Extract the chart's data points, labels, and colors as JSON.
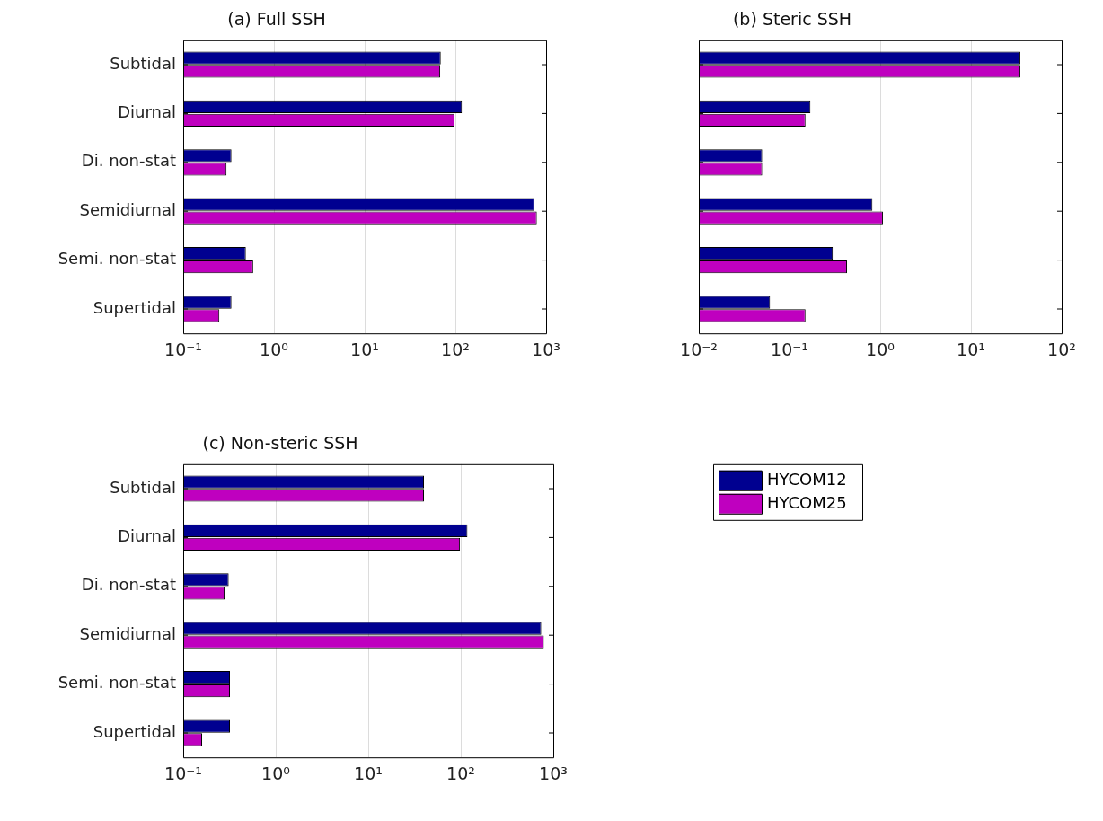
{
  "chart_data": [
    {
      "type": "bar",
      "orientation": "horizontal",
      "log": "x",
      "title": "(a) Full SSH",
      "categories": [
        "Subtidal",
        "Diurnal",
        "Di. non-stat",
        "Semidiurnal",
        "Semi. non-stat",
        "Supertidal"
      ],
      "series": [
        {
          "color": "#000090",
          "values": [
            69,
            118,
            0.34,
            741,
            0.49,
            0.34
          ]
        },
        {
          "color": "#bf00bf",
          "values": [
            68,
            98,
            0.3,
            790,
            0.59,
            0.25
          ]
        }
      ],
      "xlim": [
        0.1,
        1000
      ],
      "xticks": [
        {
          "value": 0.1,
          "label": "10⁻¹"
        },
        {
          "value": 1,
          "label": "10⁰"
        },
        {
          "value": 10,
          "label": "10¹"
        },
        {
          "value": 100,
          "label": "10²"
        },
        {
          "value": 1000,
          "label": "10³"
        }
      ],
      "grid": "x",
      "legend": false
    },
    {
      "type": "bar",
      "orientation": "horizontal",
      "log": "x",
      "title": "(b) Steric SSH",
      "categories": [
        null,
        null,
        null,
        null,
        null,
        null
      ],
      "series": [
        {
          "color": "#000090",
          "values": [
            35,
            0.17,
            0.05,
            0.82,
            0.3,
            0.061
          ]
        },
        {
          "color": "#bf00bf",
          "values": [
            35,
            0.15,
            0.05,
            1.07,
            0.43,
            0.15
          ]
        }
      ],
      "xlim": [
        0.01,
        100
      ],
      "xticks": [
        {
          "value": 0.01,
          "label": "10⁻²"
        },
        {
          "value": 0.1,
          "label": "10⁻¹"
        },
        {
          "value": 1,
          "label": "10⁰"
        },
        {
          "value": 10,
          "label": "10¹"
        },
        {
          "value": 100,
          "label": "10²"
        }
      ],
      "grid": "x",
      "legend": false,
      "tick_labels": "x"
    },
    {
      "type": "bar",
      "orientation": "horizontal",
      "log": "x",
      "title": "(c) Non-steric SSH",
      "categories": [
        "Subtidal",
        "Diurnal",
        "Di. non-stat",
        "Semidiurnal",
        "Semi. non-stat",
        "Supertidal"
      ],
      "series": [
        {
          "name": "HYCOM12",
          "color": "#000090",
          "values": [
            40,
            118,
            0.31,
            741,
            0.32,
            0.32
          ]
        },
        {
          "name": "HYCOM25",
          "color": "#bf00bf",
          "values": [
            40,
            98,
            0.28,
            790,
            0.32,
            0.16
          ]
        }
      ],
      "xlim": [
        0.1,
        1000
      ],
      "xticks": [
        {
          "value": 0.1,
          "label": "10⁻¹"
        },
        {
          "value": 1,
          "label": "10⁰"
        },
        {
          "value": 10,
          "label": "10¹"
        },
        {
          "value": 100,
          "label": "10²"
        },
        {
          "value": 1000,
          "label": "10³"
        }
      ],
      "grid": "x",
      "legend": "right"
    }
  ]
}
